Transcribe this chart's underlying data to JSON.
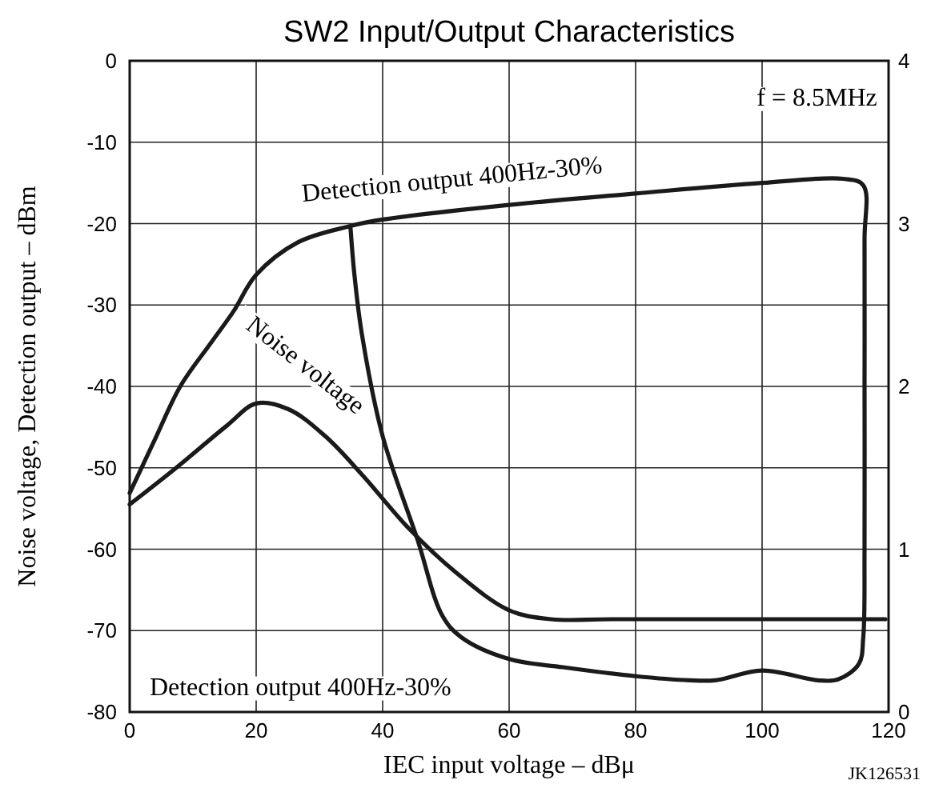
{
  "chart_data": {
    "type": "line",
    "title": "SW2 Input/Output Characteristics",
    "xlabel": "IEC input voltage – dBμ",
    "ylabel": "Noise voltage, Detection output – dBm",
    "xlim": [
      0,
      120
    ],
    "xticks": [
      0,
      20,
      40,
      60,
      80,
      100,
      120
    ],
    "ylim": [
      -80,
      0
    ],
    "yticks": [
      0,
      -10,
      -20,
      -30,
      -40,
      -50,
      -60,
      -70,
      -80
    ],
    "y2lim": [
      0,
      4
    ],
    "y2ticks": [
      0,
      1,
      2,
      3,
      4
    ],
    "grid": true,
    "marker": "none",
    "line_style": "solid",
    "series": [
      {
        "color": "#1a1a1a",
        "x": [
          0,
          4,
          8,
          12.9,
          16.4,
          20,
          26.6,
          34.9,
          40,
          60,
          80,
          100,
          112.8,
          116,
          116.2,
          116.2,
          116.2,
          116,
          115.3,
          112,
          108.8,
          100,
          92.6,
          88.5,
          80,
          68.5,
          60,
          52.4,
          49.4,
          45.5,
          40,
          36.7,
          35.5,
          34.9
        ],
        "values": [
          -53.1,
          -46.5,
          -40,
          -34.6,
          -30.8,
          -26.3,
          -22.3,
          -20.3,
          -19.5,
          -17.7,
          -16.3,
          -15,
          -14.5,
          -15.3,
          -22,
          -40,
          -60,
          -70.8,
          -74.1,
          -76,
          -76.1,
          -74.9,
          -76.1,
          -76.1,
          -75.6,
          -74.5,
          -73.5,
          -70.8,
          -68.1,
          -58.8,
          -46.1,
          -33.5,
          -26,
          -20.3
        ]
      },
      {
        "color": "#1a1a1a",
        "x": [
          0,
          7.2,
          15.4,
          20,
          25.1,
          30.9,
          36.7,
          44.2,
          51.5,
          60,
          66.6,
          76.4,
          119.5
        ],
        "values": [
          -54.5,
          -50.1,
          -44.8,
          -42.1,
          -42.8,
          -46.1,
          -50.8,
          -57.5,
          -62.8,
          -67.5,
          -68.6,
          -68.6,
          -68.6
        ]
      }
    ],
    "annotations": [
      "Detection output 400Hz-30%",
      "Noise voltage",
      "Detection output 400Hz-30%",
      "f = 8.5MHz",
      "JK126531"
    ]
  }
}
